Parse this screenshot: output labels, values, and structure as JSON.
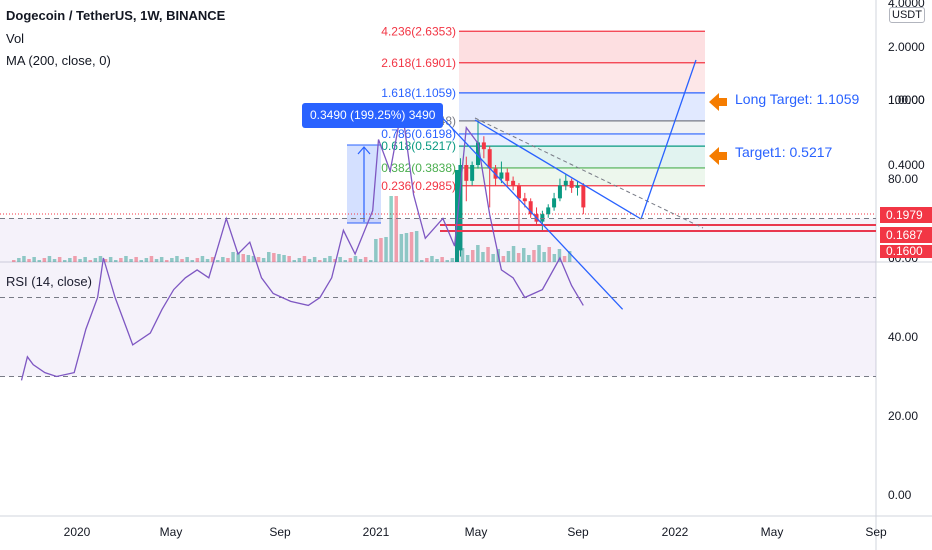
{
  "header": {
    "title": "Dogecoin / TetherUS, 1W, BINANCE",
    "indicator_vol": "Vol",
    "indicator_ma": "MA (200, close, 0)",
    "currency_badge": "USDT"
  },
  "rsi_panel": {
    "label": "RSI (14, close)"
  },
  "price_labels": {
    "current": "0.1979",
    "support": "0.1687",
    "low": "0.1600"
  },
  "measure_label": "0.3490 (199.25%) 3490",
  "annotations": {
    "long_target": "Long Target: 1.1059",
    "target1": "Target1: 0.5217"
  },
  "fib_levels": [
    {
      "label": "4.236(2.6353)",
      "value": 2.6353,
      "color": "#f23645"
    },
    {
      "label": "2.618(1.6901)",
      "value": 1.6901,
      "color": "#f23645"
    },
    {
      "label": "1.618(1.1059)",
      "value": 1.1059,
      "color": "#2962ff"
    },
    {
      "label": "1(0.7448)",
      "value": 0.7448,
      "color": "#787b86"
    },
    {
      "label": "0.786(0.6198)",
      "value": 0.6198,
      "color": "#2962ff"
    },
    {
      "label": "0.618(0.5217)",
      "value": 0.5217,
      "color": "#089981"
    },
    {
      "label": "0.382(0.3838)",
      "value": 0.3838,
      "color": "#4caf50"
    },
    {
      "label": "0.236(0.2985)",
      "value": 0.2985,
      "color": "#f23645"
    }
  ],
  "colors": {
    "up": "#089981",
    "down": "#f23645",
    "accent": "#2962ff",
    "rsi_line": "#7e57c2",
    "orange": "#f57c00"
  },
  "chart_data": {
    "type": "line",
    "x_ticks": [
      "2020",
      "May",
      "Sep",
      "2021",
      "May",
      "Sep",
      "2022",
      "May",
      "Sep"
    ],
    "price_axis": {
      "scale": "log",
      "ticks": [
        "4.0000",
        "2.0000",
        "1.0000",
        "0.4000"
      ]
    },
    "rsi_axis": {
      "range": [
        0,
        100
      ],
      "ticks": [
        "100.00",
        "80.00",
        "60.00",
        "40.00",
        "20.00",
        "0.00"
      ],
      "bands": [
        30,
        50,
        70
      ]
    },
    "price_candles_2021": {
      "weeks": [
        "2021-04-12",
        "2021-04-19",
        "2021-04-26",
        "2021-05-03",
        "2021-05-10",
        "2021-05-17",
        "2021-05-24",
        "2021-05-31",
        "2021-06-07",
        "2021-06-14",
        "2021-06-21",
        "2021-06-28",
        "2021-07-05",
        "2021-07-12",
        "2021-07-19",
        "2021-07-26",
        "2021-08-02",
        "2021-08-09",
        "2021-08-16",
        "2021-08-23",
        "2021-08-30",
        "2021-09-06"
      ],
      "open": [
        0.12,
        0.4,
        0.32,
        0.4,
        0.55,
        0.5,
        0.38,
        0.33,
        0.36,
        0.32,
        0.3,
        0.25,
        0.24,
        0.2,
        0.18,
        0.2,
        0.22,
        0.25,
        0.3,
        0.32,
        0.29,
        0.3
      ],
      "close": [
        0.4,
        0.32,
        0.4,
        0.55,
        0.5,
        0.38,
        0.33,
        0.36,
        0.32,
        0.3,
        0.25,
        0.24,
        0.2,
        0.18,
        0.2,
        0.22,
        0.25,
        0.3,
        0.32,
        0.29,
        0.3,
        0.22
      ],
      "high": [
        0.44,
        0.45,
        0.42,
        0.74,
        0.6,
        0.52,
        0.4,
        0.42,
        0.38,
        0.34,
        0.31,
        0.27,
        0.25,
        0.22,
        0.21,
        0.23,
        0.27,
        0.33,
        0.35,
        0.33,
        0.32,
        0.31
      ],
      "low": [
        0.11,
        0.24,
        0.3,
        0.38,
        0.44,
        0.22,
        0.3,
        0.31,
        0.3,
        0.28,
        0.16,
        0.22,
        0.19,
        0.17,
        0.16,
        0.19,
        0.21,
        0.24,
        0.28,
        0.27,
        0.26,
        0.2
      ]
    },
    "rsi_series": [
      [
        "2019-11-04",
        29
      ],
      [
        "2019-11-11",
        35
      ],
      [
        "2019-11-18",
        33
      ],
      [
        "2019-12-02",
        31
      ],
      [
        "2019-12-16",
        30
      ],
      [
        "2020-01-06",
        31
      ],
      [
        "2020-01-20",
        42
      ],
      [
        "2020-02-03",
        50
      ],
      [
        "2020-02-10",
        60
      ],
      [
        "2020-02-24",
        50
      ],
      [
        "2020-03-09",
        42
      ],
      [
        "2020-03-16",
        38
      ],
      [
        "2020-04-06",
        41
      ],
      [
        "2020-04-20",
        47
      ],
      [
        "2020-05-04",
        52
      ],
      [
        "2020-05-18",
        55
      ],
      [
        "2020-06-01",
        57
      ],
      [
        "2020-06-15",
        55
      ],
      [
        "2020-07-06",
        70
      ],
      [
        "2020-07-20",
        61
      ],
      [
        "2020-08-03",
        64
      ],
      [
        "2020-08-17",
        55
      ],
      [
        "2020-08-31",
        51
      ],
      [
        "2020-09-21",
        49
      ],
      [
        "2020-10-12",
        48
      ],
      [
        "2020-10-26",
        50
      ],
      [
        "2020-11-09",
        55
      ],
      [
        "2020-11-23",
        67
      ],
      [
        "2020-12-07",
        61
      ],
      [
        "2020-12-28",
        72
      ],
      [
        "2021-01-04",
        90
      ],
      [
        "2021-01-18",
        82
      ],
      [
        "2021-02-01",
        98
      ],
      [
        "2021-02-15",
        76
      ],
      [
        "2021-03-01",
        65
      ],
      [
        "2021-03-22",
        70
      ],
      [
        "2021-04-05",
        63
      ],
      [
        "2021-04-19",
        93
      ],
      [
        "2021-05-03",
        89
      ],
      [
        "2021-05-17",
        71
      ],
      [
        "2021-05-31",
        57
      ],
      [
        "2021-06-14",
        55
      ],
      [
        "2021-06-28",
        50
      ],
      [
        "2021-07-19",
        52
      ],
      [
        "2021-08-09",
        60
      ],
      [
        "2021-08-23",
        53
      ],
      [
        "2021-09-06",
        48
      ]
    ],
    "rsi_trendline": [
      [
        "2021-04-12",
        96
      ],
      [
        "2021-10-11",
        47
      ]
    ]
  }
}
